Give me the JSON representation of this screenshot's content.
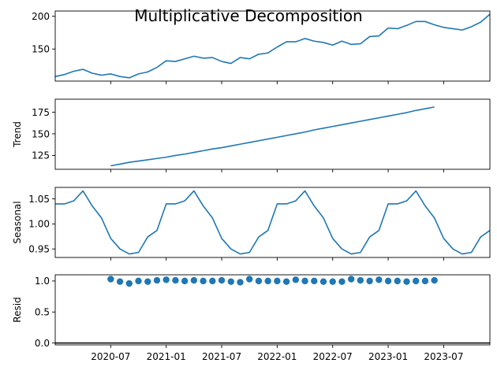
{
  "chart_data": {
    "type": "line",
    "title": "Multiplicative Decomposition",
    "x_range": [
      "2020-01",
      "2023-12"
    ],
    "x_ticks": [
      "2020-07",
      "2021-01",
      "2021-07",
      "2022-01",
      "2022-07",
      "2023-01",
      "2023-07"
    ],
    "grid": false,
    "colors": {
      "series": "#1f77b4",
      "axis": "#000000",
      "zero_line": "#000000"
    },
    "panels": [
      {
        "name": "observed",
        "type": "line",
        "ylabel": "",
        "ylim": [
          101,
          208
        ],
        "yticks": [
          150,
          200
        ],
        "x": [
          "2020-01",
          "2020-02",
          "2020-03",
          "2020-04",
          "2020-05",
          "2020-06",
          "2020-07",
          "2020-08",
          "2020-09",
          "2020-10",
          "2020-11",
          "2020-12",
          "2021-01",
          "2021-02",
          "2021-03",
          "2021-04",
          "2021-05",
          "2021-06",
          "2021-07",
          "2021-08",
          "2021-09",
          "2021-10",
          "2021-11",
          "2021-12",
          "2022-01",
          "2022-02",
          "2022-03",
          "2022-04",
          "2022-05",
          "2022-06",
          "2022-07",
          "2022-08",
          "2022-09",
          "2022-10",
          "2022-11",
          "2022-12",
          "2023-01",
          "2023-02",
          "2023-03",
          "2023-04",
          "2023-05",
          "2023-06",
          "2023-07",
          "2023-08",
          "2023-09",
          "2023-10",
          "2023-11",
          "2023-12"
        ],
        "values": [
          108,
          111,
          116,
          119,
          113,
          110,
          112,
          108,
          106,
          112,
          115,
          122,
          132,
          131,
          135,
          139,
          136,
          137,
          131,
          128,
          137,
          135,
          142,
          144,
          153,
          161,
          161,
          166,
          162,
          160,
          156,
          162,
          157,
          158,
          169,
          170,
          182,
          181,
          186,
          192,
          192,
          187,
          183,
          181,
          179,
          184,
          191,
          203
        ]
      },
      {
        "name": "trend",
        "type": "line",
        "ylabel": "Trend",
        "ylim": [
          109,
          190
        ],
        "yticks": [
          125,
          150,
          175
        ],
        "x": [
          "2020-07",
          "2020-08",
          "2020-09",
          "2020-10",
          "2020-11",
          "2020-12",
          "2021-01",
          "2021-02",
          "2021-03",
          "2021-04",
          "2021-05",
          "2021-06",
          "2021-07",
          "2021-08",
          "2021-09",
          "2021-10",
          "2021-11",
          "2021-12",
          "2022-01",
          "2022-02",
          "2022-03",
          "2022-04",
          "2022-05",
          "2022-06",
          "2022-07",
          "2022-08",
          "2022-09",
          "2022-10",
          "2022-11",
          "2022-12",
          "2023-01",
          "2023-02",
          "2023-03",
          "2023-04",
          "2023-05",
          "2023-06"
        ],
        "values": [
          113,
          115,
          117,
          118.5,
          120,
          121.5,
          123,
          125,
          126.5,
          128.5,
          130.5,
          132.5,
          134,
          136,
          138,
          140,
          142,
          144,
          146,
          148,
          150,
          152,
          154.5,
          156.5,
          158.5,
          160.5,
          162.5,
          164.5,
          166.5,
          168.5,
          170.5,
          172.5,
          174.5,
          177,
          179,
          181
        ]
      },
      {
        "name": "seasonal",
        "type": "line",
        "ylabel": "Seasonal",
        "ylim": [
          0.933,
          1.073
        ],
        "yticks": [
          0.95,
          1.0,
          1.05
        ],
        "yticklabels": [
          "0.95",
          "1.00",
          "1.05"
        ],
        "x": [
          "2020-01",
          "2020-02",
          "2020-03",
          "2020-04",
          "2020-05",
          "2020-06",
          "2020-07",
          "2020-08",
          "2020-09",
          "2020-10",
          "2020-11",
          "2020-12",
          "2021-01",
          "2021-02",
          "2021-03",
          "2021-04",
          "2021-05",
          "2021-06",
          "2021-07",
          "2021-08",
          "2021-09",
          "2021-10",
          "2021-11",
          "2021-12",
          "2022-01",
          "2022-02",
          "2022-03",
          "2022-04",
          "2022-05",
          "2022-06",
          "2022-07",
          "2022-08",
          "2022-09",
          "2022-10",
          "2022-11",
          "2022-12",
          "2023-01",
          "2023-02",
          "2023-03",
          "2023-04",
          "2023-05",
          "2023-06",
          "2023-07",
          "2023-08",
          "2023-09",
          "2023-10",
          "2023-11",
          "2023-12"
        ],
        "values": [
          1.04,
          1.04,
          1.046,
          1.066,
          1.036,
          1.012,
          0.971,
          0.95,
          0.94,
          0.943,
          0.974,
          0.987,
          1.04,
          1.04,
          1.046,
          1.066,
          1.036,
          1.012,
          0.971,
          0.95,
          0.94,
          0.943,
          0.974,
          0.987,
          1.04,
          1.04,
          1.046,
          1.066,
          1.036,
          1.012,
          0.971,
          0.95,
          0.94,
          0.943,
          0.974,
          0.987,
          1.04,
          1.04,
          1.046,
          1.066,
          1.036,
          1.012,
          0.971,
          0.95,
          0.94,
          0.943,
          0.974,
          0.987
        ]
      },
      {
        "name": "resid",
        "type": "scatter",
        "ylabel": "Resid",
        "ylim": [
          -0.03,
          1.1
        ],
        "yticks": [
          0.0,
          0.5,
          1.0
        ],
        "yticklabels": [
          "0.0",
          "0.5",
          "1.0"
        ],
        "baseline": 0,
        "x": [
          "2020-07",
          "2020-08",
          "2020-09",
          "2020-10",
          "2020-11",
          "2020-12",
          "2021-01",
          "2021-02",
          "2021-03",
          "2021-04",
          "2021-05",
          "2021-06",
          "2021-07",
          "2021-08",
          "2021-09",
          "2021-10",
          "2021-11",
          "2021-12",
          "2022-01",
          "2022-02",
          "2022-03",
          "2022-04",
          "2022-05",
          "2022-06",
          "2022-07",
          "2022-08",
          "2022-09",
          "2022-10",
          "2022-11",
          "2022-12",
          "2023-01",
          "2023-02",
          "2023-03",
          "2023-04",
          "2023-05",
          "2023-06"
        ],
        "values": [
          1.03,
          0.99,
          0.96,
          1.0,
          0.99,
          1.01,
          1.02,
          1.01,
          1.0,
          1.01,
          1.0,
          1.0,
          1.01,
          0.99,
          0.98,
          1.03,
          1.0,
          1.0,
          1.0,
          0.99,
          1.02,
          1.0,
          1.0,
          0.99,
          0.99,
          0.99,
          1.03,
          1.01,
          1.0,
          1.02,
          1.0,
          1.0,
          0.99,
          1.0,
          1.0,
          1.01
        ]
      }
    ]
  }
}
